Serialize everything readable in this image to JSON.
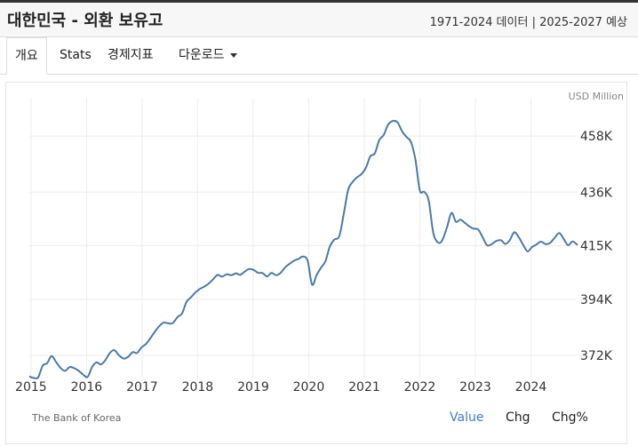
{
  "header": {
    "title": "대한민국 - 외환 보유고",
    "subtitle": "1971-2024 데이터 | 2025-2027 예상"
  },
  "tabs": [
    {
      "label": "개요"
    },
    {
      "label": "Stats"
    },
    {
      "label": "경제지표"
    },
    {
      "label": "다운로드"
    }
  ],
  "chart_data": {
    "type": "line",
    "unit_label": "USD Million",
    "source": "The Bank of Korea",
    "x_ticks": [
      "2015",
      "2016",
      "2017",
      "2018",
      "2019",
      "2020",
      "2021",
      "2022",
      "2023",
      "2024"
    ],
    "y_ticks": [
      "372K",
      "394K",
      "415K",
      "436K",
      "458K"
    ],
    "y_tick_values": [
      372000,
      394000,
      415000,
      436000,
      458000
    ],
    "ylim": [
      363000,
      473000
    ],
    "xlim": [
      2014.97,
      2024.84
    ],
    "grid": true,
    "series": [
      {
        "color": "#4a7aa8",
        "x": [
          2014.97,
          2015.05,
          2015.13,
          2015.21,
          2015.29,
          2015.37,
          2015.45,
          2015.53,
          2015.61,
          2015.7,
          2015.78,
          2015.86,
          2015.94,
          2016.02,
          2016.1,
          2016.18,
          2016.26,
          2016.34,
          2016.42,
          2016.5,
          2016.58,
          2016.67,
          2016.75,
          2016.83,
          2016.91,
          2016.99,
          2017.07,
          2017.15,
          2017.23,
          2017.31,
          2017.39,
          2017.47,
          2017.55,
          2017.64,
          2017.72,
          2017.8,
          2017.88,
          2017.96,
          2018.04,
          2018.12,
          2018.2,
          2018.28,
          2018.36,
          2018.44,
          2018.52,
          2018.61,
          2018.69,
          2018.77,
          2018.85,
          2018.93,
          2019.01,
          2019.09,
          2019.17,
          2019.25,
          2019.33,
          2019.41,
          2019.49,
          2019.58,
          2019.66,
          2019.74,
          2019.82,
          2019.9,
          2019.98,
          2020.06,
          2020.14,
          2020.22,
          2020.3,
          2020.38,
          2020.46,
          2020.55,
          2020.63,
          2020.71,
          2020.79,
          2020.87,
          2020.95,
          2021.03,
          2021.11,
          2021.19,
          2021.27,
          2021.35,
          2021.43,
          2021.52,
          2021.6,
          2021.68,
          2021.76,
          2021.84,
          2021.92,
          2022.0,
          2022.08,
          2022.16,
          2022.24,
          2022.32,
          2022.4,
          2022.49,
          2022.57,
          2022.65,
          2022.73,
          2022.81,
          2022.89,
          2022.97,
          2023.05,
          2023.13,
          2023.21,
          2023.29,
          2023.37,
          2023.46,
          2023.54,
          2023.62,
          2023.7,
          2023.78,
          2023.86,
          2023.94,
          2024.02,
          2024.1,
          2024.18,
          2024.26,
          2024.34,
          2024.43,
          2024.51,
          2024.59,
          2024.67,
          2024.75,
          2024.84
        ],
        "y": [
          363800,
          363200,
          363500,
          368000,
          369000,
          371800,
          369500,
          367200,
          366000,
          367500,
          367000,
          366000,
          364500,
          363600,
          367500,
          369300,
          368500,
          370200,
          373000,
          374100,
          372200,
          370800,
          371500,
          373300,
          373000,
          375200,
          376500,
          378800,
          381300,
          383500,
          384900,
          384600,
          384700,
          387100,
          388500,
          393000,
          394800,
          396700,
          398100,
          399000,
          400200,
          401900,
          403600,
          402900,
          403800,
          403500,
          404200,
          403600,
          404900,
          405900,
          405500,
          404400,
          404300,
          403000,
          404400,
          403500,
          404300,
          406600,
          408000,
          409200,
          409900,
          410800,
          409100,
          399800,
          403400,
          406400,
          408900,
          414700,
          417400,
          418800,
          427400,
          436900,
          440000,
          441800,
          443100,
          445600,
          450100,
          451200,
          456400,
          458400,
          462500,
          463900,
          463300,
          459900,
          457600,
          455700,
          448800,
          436700,
          436100,
          432700,
          420300,
          416400,
          417000,
          422300,
          427900,
          424400,
          425200,
          424000,
          422600,
          421700,
          421400,
          418400,
          415200,
          415600,
          416800,
          417200,
          415700,
          417200,
          420300,
          418400,
          415400,
          412800,
          414500,
          415500,
          416600,
          415700,
          416000,
          418200,
          420000,
          417700,
          415200,
          416700,
          415300
        ]
      }
    ]
  },
  "toggles": [
    {
      "label": "Value",
      "active": true
    },
    {
      "label": "Chg",
      "active": false
    },
    {
      "label": "Chg%",
      "active": false
    }
  ]
}
